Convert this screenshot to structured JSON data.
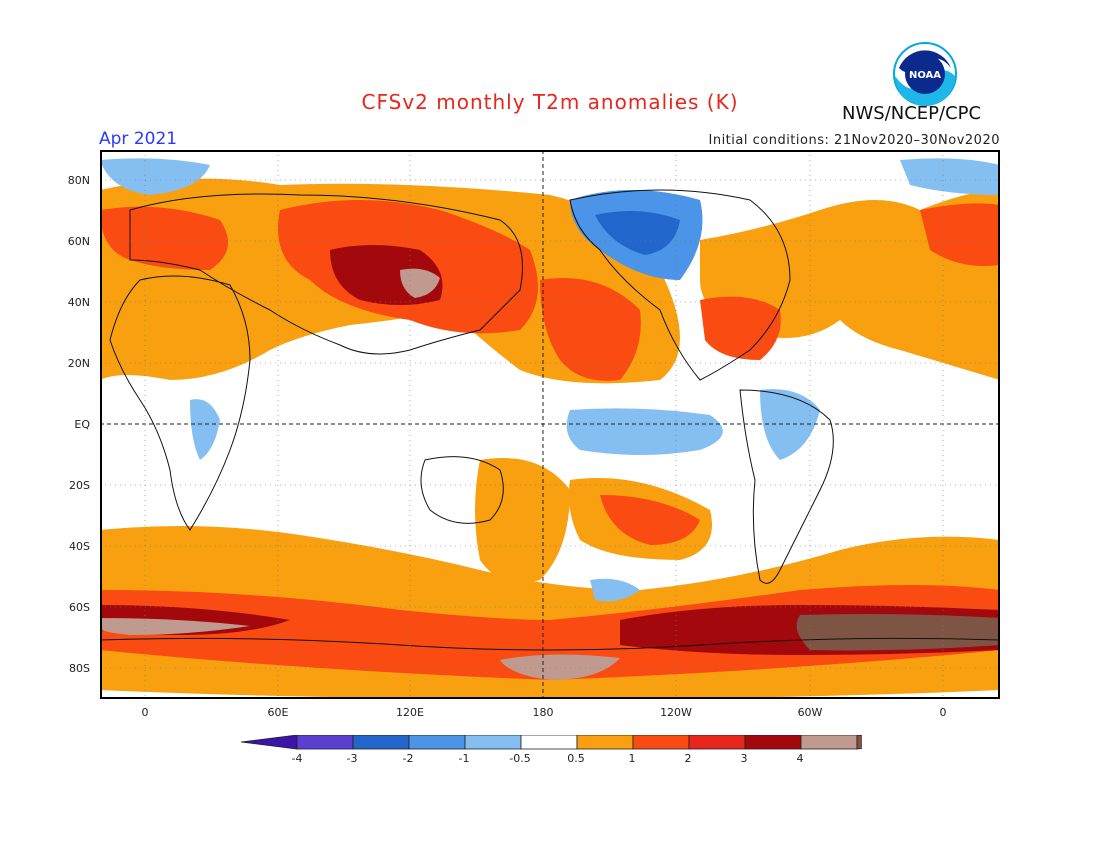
{
  "header": {
    "title": "CFSv2 monthly T2m anomalies (K)",
    "month": "Apr 2021",
    "initial_conditions": "Initial conditions: 21Nov2020–30Nov2020",
    "agency": "NWS/NCEP/CPC",
    "logo_text": "NOAA"
  },
  "map": {
    "projection": "equirectangular",
    "central_longitude": "180",
    "lat_ticks": [
      "80N",
      "60N",
      "40N",
      "20N",
      "EQ",
      "20S",
      "40S",
      "60S",
      "80S"
    ],
    "lon_ticks": [
      "0",
      "60E",
      "120E",
      "180",
      "120W",
      "60W",
      "0"
    ],
    "reference_lines": [
      "EQ",
      "180"
    ]
  },
  "legend": {
    "levels": [
      "-4",
      "-3",
      "-2",
      "-1",
      "-0.5",
      "0.5",
      "1",
      "2",
      "3",
      "4"
    ],
    "colors": [
      "#3b14a8",
      "#5a3fd1",
      "#2266cc",
      "#4b94e8",
      "#85bff2",
      "#ffffff",
      "#f8a010",
      "#f94b12",
      "#e8261c",
      "#a3080d",
      "#c09a8e",
      "#7e5544"
    ]
  }
}
